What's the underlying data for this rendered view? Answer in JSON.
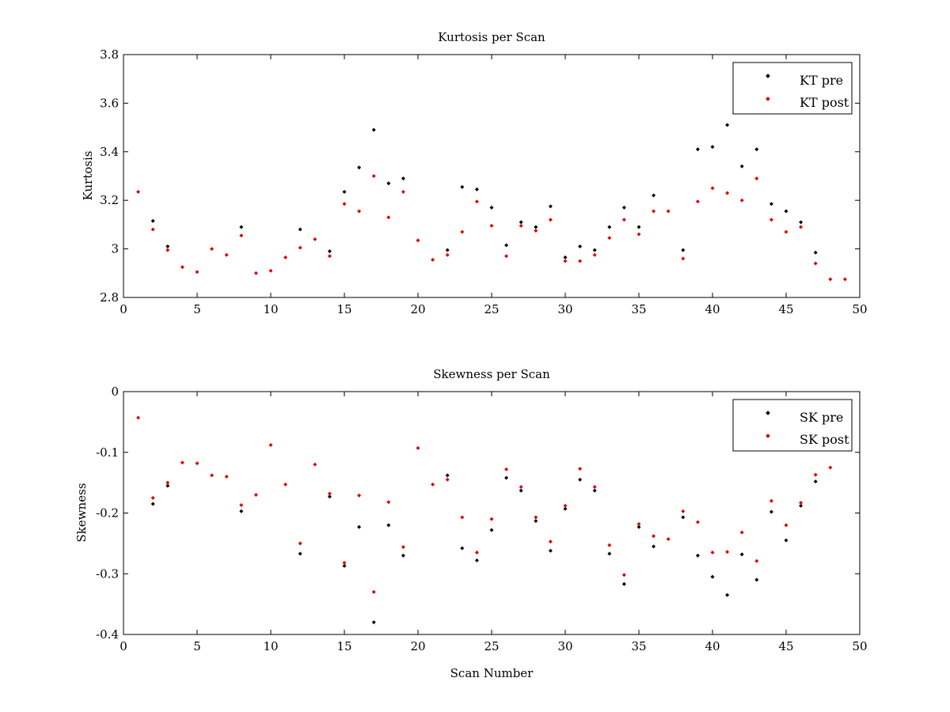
{
  "chart_data": [
    {
      "type": "scatter",
      "title": "Kurtosis per Scan",
      "xlabel": "",
      "ylabel": "Kurtosis",
      "xlim": [
        0,
        50
      ],
      "ylim": [
        2.8,
        3.8
      ],
      "xticks": [
        0,
        5,
        10,
        15,
        20,
        25,
        30,
        35,
        40,
        45,
        50
      ],
      "xtick_labels": [
        "0",
        "5",
        "10",
        "15",
        "20",
        "25",
        "30",
        "35",
        "40",
        "45",
        "50"
      ],
      "yticks": [
        2.8,
        3.0,
        3.2,
        3.4,
        3.6,
        3.8
      ],
      "ytick_labels": [
        "2.8",
        "3",
        "3.2",
        "3.4",
        "3.6",
        "3.8"
      ],
      "grid": false,
      "legend_position": "top-right",
      "series": [
        {
          "name": "KT pre",
          "color": "#000000",
          "points": [
            [
              2,
              3.115
            ],
            [
              3,
              3.01
            ],
            [
              8,
              3.09
            ],
            [
              12,
              3.08
            ],
            [
              14,
              2.99
            ],
            [
              15,
              3.235
            ],
            [
              16,
              3.335
            ],
            [
              17,
              3.49
            ],
            [
              18,
              3.27
            ],
            [
              19,
              3.29
            ],
            [
              22,
              2.995
            ],
            [
              23,
              3.255
            ],
            [
              24,
              3.245
            ],
            [
              25,
              3.17
            ],
            [
              26,
              3.015
            ],
            [
              27,
              3.11
            ],
            [
              28,
              3.09
            ],
            [
              29,
              3.175
            ],
            [
              30,
              2.965
            ],
            [
              31,
              3.01
            ],
            [
              32,
              2.995
            ],
            [
              33,
              3.09
            ],
            [
              34,
              3.17
            ],
            [
              35,
              3.09
            ],
            [
              36,
              3.22
            ],
            [
              38,
              2.995
            ],
            [
              39,
              3.41
            ],
            [
              40,
              3.42
            ],
            [
              41,
              3.51
            ],
            [
              42,
              3.34
            ],
            [
              43,
              3.41
            ],
            [
              44,
              3.185
            ],
            [
              45,
              3.155
            ],
            [
              46,
              3.11
            ],
            [
              47,
              2.985
            ]
          ]
        },
        {
          "name": "KT post",
          "color": "#e00000",
          "points": [
            [
              1,
              3.235
            ],
            [
              2,
              3.08
            ],
            [
              3,
              2.995
            ],
            [
              4,
              2.925
            ],
            [
              5,
              2.905
            ],
            [
              6,
              3.0
            ],
            [
              7,
              2.975
            ],
            [
              8,
              3.055
            ],
            [
              9,
              2.9
            ],
            [
              10,
              2.91
            ],
            [
              11,
              2.965
            ],
            [
              12,
              3.005
            ],
            [
              13,
              3.04
            ],
            [
              14,
              2.97
            ],
            [
              15,
              3.185
            ],
            [
              16,
              3.155
            ],
            [
              17,
              3.3
            ],
            [
              18,
              3.13
            ],
            [
              19,
              3.235
            ],
            [
              20,
              3.035
            ],
            [
              21,
              2.955
            ],
            [
              22,
              2.975
            ],
            [
              23,
              3.07
            ],
            [
              24,
              3.195
            ],
            [
              25,
              3.095
            ],
            [
              26,
              2.97
            ],
            [
              27,
              3.095
            ],
            [
              28,
              3.075
            ],
            [
              29,
              3.12
            ],
            [
              30,
              2.95
            ],
            [
              31,
              2.95
            ],
            [
              32,
              2.975
            ],
            [
              33,
              3.045
            ],
            [
              34,
              3.12
            ],
            [
              35,
              3.06
            ],
            [
              36,
              3.155
            ],
            [
              37,
              3.155
            ],
            [
              38,
              2.96
            ],
            [
              39,
              3.195
            ],
            [
              40,
              3.25
            ],
            [
              41,
              3.23
            ],
            [
              42,
              3.2
            ],
            [
              43,
              3.29
            ],
            [
              44,
              3.12
            ],
            [
              45,
              3.07
            ],
            [
              46,
              3.09
            ],
            [
              47,
              2.94
            ],
            [
              48,
              2.875
            ],
            [
              49,
              2.875
            ]
          ]
        }
      ]
    },
    {
      "type": "scatter",
      "title": "Skewness per Scan",
      "xlabel": "Scan Number",
      "ylabel": "Skewness",
      "xlim": [
        0,
        50
      ],
      "ylim": [
        -0.4,
        0
      ],
      "xticks": [
        0,
        5,
        10,
        15,
        20,
        25,
        30,
        35,
        40,
        45,
        50
      ],
      "xtick_labels": [
        "0",
        "5",
        "10",
        "15",
        "20",
        "25",
        "30",
        "35",
        "40",
        "45",
        "50"
      ],
      "yticks": [
        -0.4,
        -0.3,
        -0.2,
        -0.1,
        0
      ],
      "ytick_labels": [
        "-0.4",
        "-0.3",
        "-0.2",
        "-0.1",
        "0"
      ],
      "grid": false,
      "legend_position": "top-right",
      "series": [
        {
          "name": "SK pre",
          "color": "#000000",
          "points": [
            [
              2,
              -0.185
            ],
            [
              3,
              -0.155
            ],
            [
              8,
              -0.197
            ],
            [
              12,
              -0.267
            ],
            [
              14,
              -0.173
            ],
            [
              15,
              -0.287
            ],
            [
              16,
              -0.223
            ],
            [
              17,
              -0.38
            ],
            [
              18,
              -0.22
            ],
            [
              19,
              -0.27
            ],
            [
              22,
              -0.138
            ],
            [
              23,
              -0.258
            ],
            [
              24,
              -0.278
            ],
            [
              25,
              -0.228
            ],
            [
              26,
              -0.142
            ],
            [
              27,
              -0.163
            ],
            [
              28,
              -0.213
            ],
            [
              29,
              -0.262
            ],
            [
              30,
              -0.193
            ],
            [
              31,
              -0.145
            ],
            [
              32,
              -0.163
            ],
            [
              33,
              -0.267
            ],
            [
              34,
              -0.317
            ],
            [
              35,
              -0.223
            ],
            [
              36,
              -0.255
            ],
            [
              38,
              -0.207
            ],
            [
              39,
              -0.27
            ],
            [
              40,
              -0.305
            ],
            [
              41,
              -0.335
            ],
            [
              42,
              -0.268
            ],
            [
              43,
              -0.31
            ],
            [
              44,
              -0.198
            ],
            [
              45,
              -0.245
            ],
            [
              46,
              -0.188
            ],
            [
              47,
              -0.148
            ]
          ]
        },
        {
          "name": "SK post",
          "color": "#e00000",
          "points": [
            [
              1,
              -0.043
            ],
            [
              2,
              -0.175
            ],
            [
              3,
              -0.15
            ],
            [
              4,
              -0.117
            ],
            [
              5,
              -0.118
            ],
            [
              6,
              -0.138
            ],
            [
              7,
              -0.14
            ],
            [
              8,
              -0.187
            ],
            [
              9,
              -0.17
            ],
            [
              10,
              -0.088
            ],
            [
              11,
              -0.153
            ],
            [
              12,
              -0.25
            ],
            [
              13,
              -0.12
            ],
            [
              14,
              -0.168
            ],
            [
              15,
              -0.282
            ],
            [
              16,
              -0.171
            ],
            [
              17,
              -0.33
            ],
            [
              18,
              -0.182
            ],
            [
              19,
              -0.256
            ],
            [
              20,
              -0.093
            ],
            [
              21,
              -0.153
            ],
            [
              22,
              -0.145
            ],
            [
              23,
              -0.207
            ],
            [
              24,
              -0.265
            ],
            [
              25,
              -0.21
            ],
            [
              26,
              -0.128
            ],
            [
              27,
              -0.157
            ],
            [
              28,
              -0.207
            ],
            [
              29,
              -0.247
            ],
            [
              30,
              -0.188
            ],
            [
              31,
              -0.127
            ],
            [
              32,
              -0.157
            ],
            [
              33,
              -0.253
            ],
            [
              34,
              -0.302
            ],
            [
              35,
              -0.218
            ],
            [
              36,
              -0.238
            ],
            [
              37,
              -0.243
            ],
            [
              38,
              -0.197
            ],
            [
              39,
              -0.215
            ],
            [
              40,
              -0.265
            ],
            [
              41,
              -0.264
            ],
            [
              42,
              -0.232
            ],
            [
              43,
              -0.279
            ],
            [
              44,
              -0.18
            ],
            [
              45,
              -0.22
            ],
            [
              46,
              -0.183
            ],
            [
              47,
              -0.137
            ],
            [
              48,
              -0.125
            ]
          ]
        }
      ]
    }
  ]
}
